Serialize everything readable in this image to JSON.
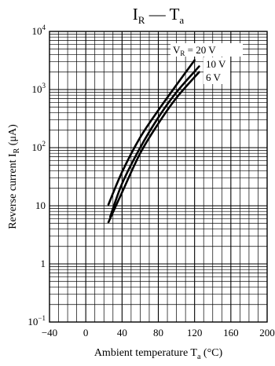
{
  "chart_data": {
    "type": "line",
    "title": {
      "main": "I",
      "sub1": "R",
      "sep": " — T",
      "sub2": "a"
    },
    "xlabel": {
      "main": "Ambient temperature  T",
      "sub": "a",
      "unit": "  (°C)"
    },
    "ylabel": {
      "main": "Reverse current  I",
      "sub": "R",
      "unit": "  (μA)"
    },
    "x_ticks": [
      -40,
      0,
      40,
      80,
      120,
      160,
      200
    ],
    "x_tick_labels": [
      "−40",
      "0",
      "40",
      "80",
      "120",
      "160",
      "200"
    ],
    "xlim": [
      -40,
      200
    ],
    "y_scale": "log",
    "ylim": [
      0.1,
      10000
    ],
    "y_ticks": [
      0.1,
      1,
      10,
      100,
      1000,
      10000
    ],
    "y_tick_labels": [
      {
        "base": "10",
        "exp": "−1"
      },
      {
        "base": "1",
        "exp": ""
      },
      {
        "base": "10",
        "exp": ""
      },
      {
        "base": "10",
        "exp": "2"
      },
      {
        "base": "10",
        "exp": "3"
      },
      {
        "base": "10",
        "exp": "4"
      }
    ],
    "grid": true,
    "series": [
      {
        "name": "V_R = 20 V",
        "label": {
          "main": "V",
          "sub": "R",
          "rest": " = 20 V"
        },
        "x": [
          25,
          40,
          60,
          80,
          100,
          120
        ],
        "y": [
          10.5,
          38,
          150,
          440,
          1200,
          3200
        ]
      },
      {
        "name": "10 V",
        "label": {
          "main": "10 V",
          "sub": "",
          "rest": ""
        },
        "x": [
          27,
          40,
          60,
          80,
          100,
          125
        ],
        "y": [
          6.5,
          24,
          100,
          330,
          900,
          2500
        ]
      },
      {
        "name": "6 V",
        "label": {
          "main": "6 V",
          "sub": "",
          "rest": ""
        },
        "x": [
          25,
          40,
          60,
          80,
          100,
          125
        ],
        "y": [
          5.2,
          17,
          80,
          260,
          720,
          2000
        ]
      }
    ]
  }
}
